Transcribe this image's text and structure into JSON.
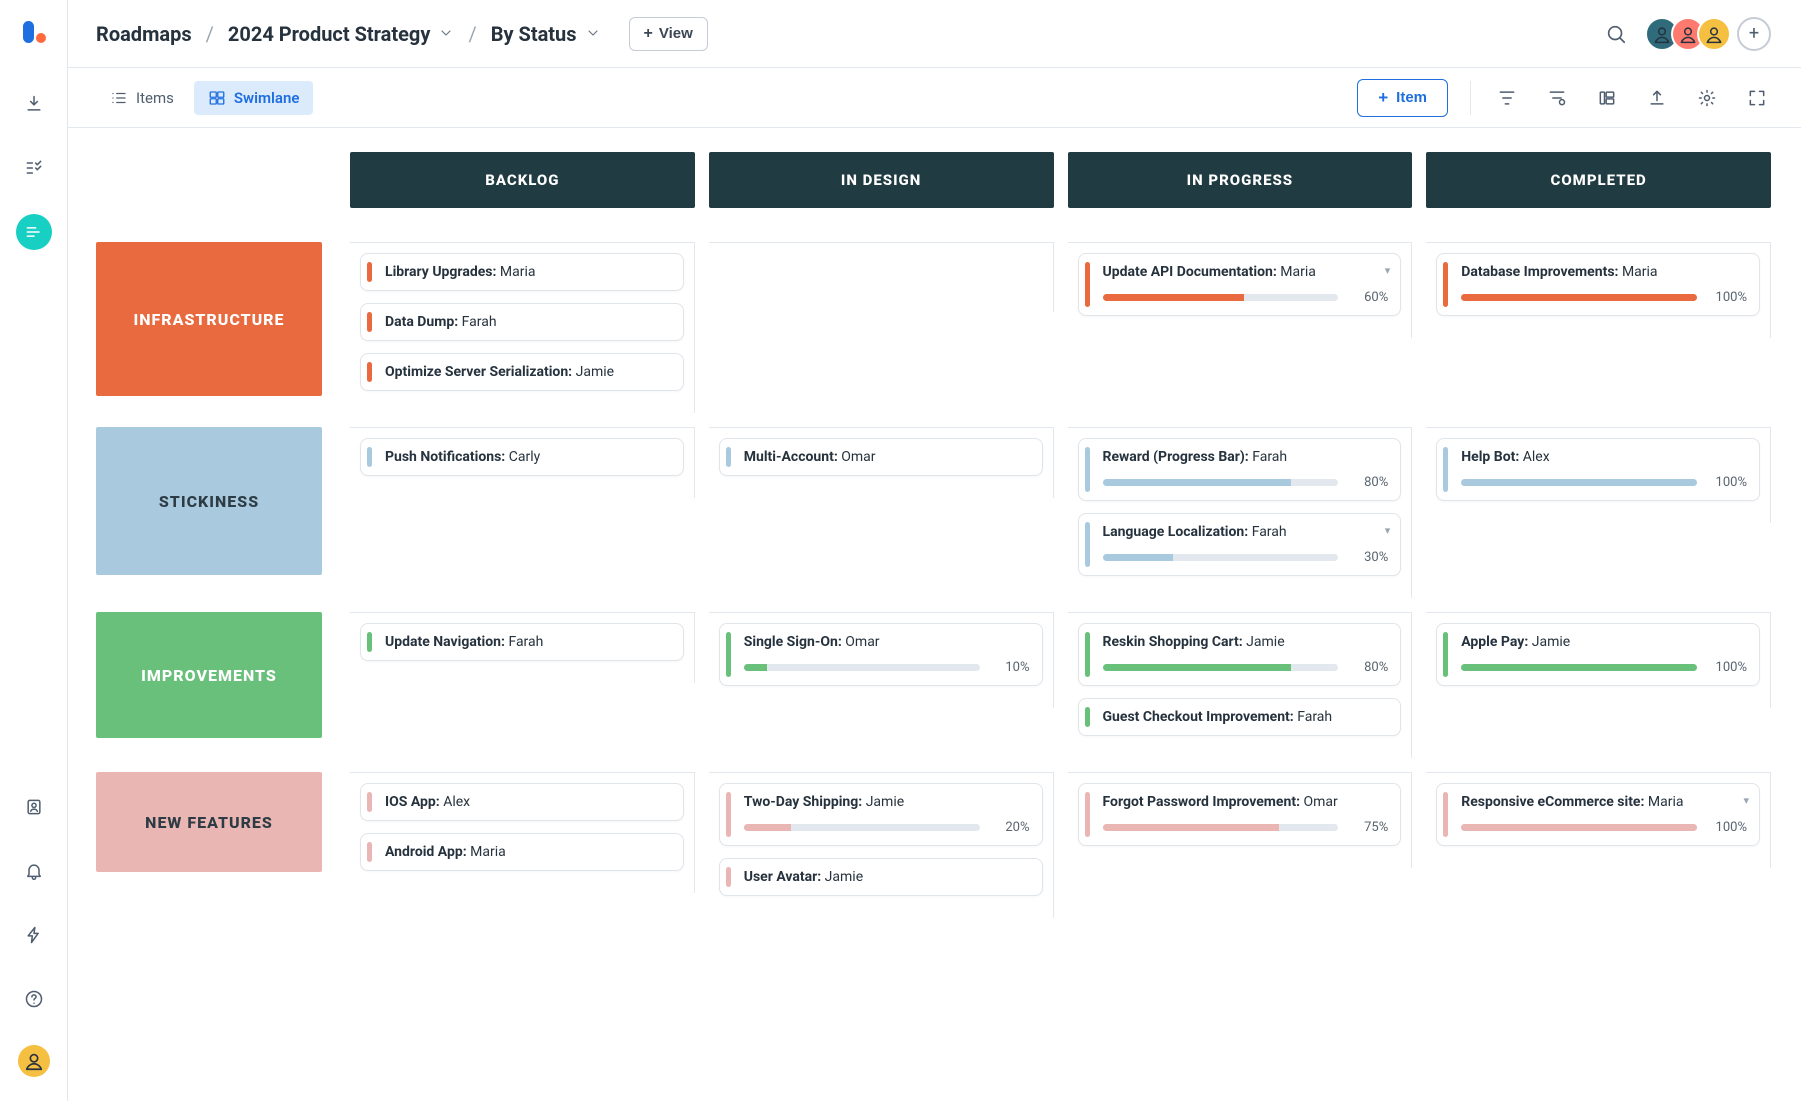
{
  "breadcrumbs": {
    "root": "Roadmaps",
    "project": "2024 Product Strategy",
    "view": "By Status",
    "addView": "View"
  },
  "toolbar": {
    "tabs": {
      "items": "Items",
      "swimlane": "Swimlane"
    },
    "addItem": "Item"
  },
  "avatars": [
    {
      "bg": "#2f6b7a"
    },
    {
      "bg": "#ff7a6e"
    },
    {
      "bg": "#f5bf42"
    }
  ],
  "columns": [
    {
      "label": "Backlog"
    },
    {
      "label": "In Design"
    },
    {
      "label": "In Progress"
    },
    {
      "label": "Completed"
    }
  ],
  "lanes": [
    {
      "label": "Infrastructure",
      "color": "#e96a3f",
      "textColor": "#ffffff",
      "minHeight": 154,
      "cells": [
        [
          {
            "title": "Library Upgrades:",
            "assignee": "Maria"
          },
          {
            "title": "Data Dump:",
            "assignee": "Farah"
          },
          {
            "title": "Optimize Server Serialization:",
            "assignee": "Jamie"
          }
        ],
        [],
        [
          {
            "title": "Update API Documentation:",
            "assignee": "Maria",
            "progress": 60,
            "caret": true
          }
        ],
        [
          {
            "title": "Database Improvements:",
            "assignee": "Maria",
            "progress": 100
          }
        ]
      ]
    },
    {
      "label": "Stickiness",
      "color": "#a9cade",
      "textColor": "#2d3b44",
      "minHeight": 148,
      "cells": [
        [
          {
            "title": "Push Notifications:",
            "assignee": "Carly"
          }
        ],
        [
          {
            "title": "Multi-Account:",
            "assignee": "Omar"
          }
        ],
        [
          {
            "title": "Reward (Progress Bar):",
            "assignee": "Farah",
            "progress": 80
          },
          {
            "title": "Language Localization:",
            "assignee": "Farah",
            "progress": 30,
            "caret": true
          }
        ],
        [
          {
            "title": "Help Bot:",
            "assignee": "Alex",
            "progress": 100
          }
        ]
      ]
    },
    {
      "label": "Improvements",
      "color": "#68c07b",
      "textColor": "#ffffff",
      "minHeight": 126,
      "cells": [
        [
          {
            "title": "Update Navigation:",
            "assignee": "Farah"
          }
        ],
        [
          {
            "title": "Single Sign-On:",
            "assignee": "Omar",
            "progress": 10
          }
        ],
        [
          {
            "title": "Reskin Shopping Cart:",
            "assignee": "Jamie",
            "progress": 80
          },
          {
            "title": "Guest Checkout Improvement:",
            "assignee": "Farah"
          }
        ],
        [
          {
            "title": "Apple Pay:",
            "assignee": "Jamie",
            "progress": 100
          }
        ]
      ]
    },
    {
      "label": "New Features",
      "color": "#e9b6b3",
      "textColor": "#2d3b44",
      "minHeight": 100,
      "cells": [
        [
          {
            "title": "IOS App:",
            "assignee": "Alex"
          },
          {
            "title": "Android App: ",
            "assignee": "Maria"
          }
        ],
        [
          {
            "title": "Two-Day Shipping:",
            "assignee": "Jamie",
            "progress": 20
          },
          {
            "title": "User Avatar:",
            "assignee": "Jamie"
          }
        ],
        [
          {
            "title": "Forgot Password Improvement:",
            "assignee": "Omar",
            "progress": 75
          }
        ],
        [
          {
            "title": "Responsive eCommerce site:",
            "assignee": "Maria",
            "progress": 100,
            "caret": true
          }
        ]
      ]
    }
  ],
  "styling": {
    "columnHeaderBg": "#203b42",
    "columnHeaderText": "#ffffff",
    "railActiveBg": "#17cfc2",
    "primaryBlue": "#1f6fe0",
    "gridLine": "#e3e8ee"
  }
}
